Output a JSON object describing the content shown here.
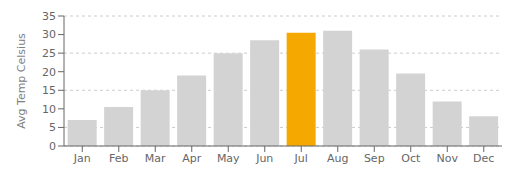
{
  "chart_data": {
    "type": "bar",
    "categories": [
      "Jan",
      "Feb",
      "Mar",
      "Apr",
      "May",
      "Jun",
      "Jul",
      "Aug",
      "Sep",
      "Oct",
      "Nov",
      "Dec"
    ],
    "values": [
      7,
      10.5,
      15,
      19,
      25,
      28.5,
      30.5,
      31,
      26,
      19.5,
      12,
      8
    ],
    "colors": [
      "#d3d3d3",
      "#d3d3d3",
      "#d3d3d3",
      "#d3d3d3",
      "#d3d3d3",
      "#d3d3d3",
      "#f5a800",
      "#d3d3d3",
      "#d3d3d3",
      "#d3d3d3",
      "#d3d3d3",
      "#d3d3d3"
    ],
    "ylabel": "Avg Temp Celsius",
    "ylim": [
      0,
      35
    ],
    "yticks": [
      0,
      5,
      10,
      15,
      20,
      25,
      30,
      35
    ],
    "grid": true
  }
}
